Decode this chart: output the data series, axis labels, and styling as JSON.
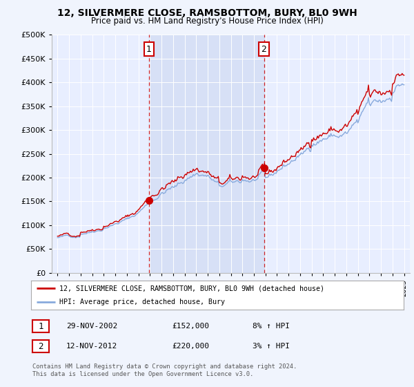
{
  "title": "12, SILVERMERE CLOSE, RAMSBOTTOM, BURY, BL0 9WH",
  "subtitle": "Price paid vs. HM Land Registry's House Price Index (HPI)",
  "ylim": [
    0,
    500000
  ],
  "yticks": [
    0,
    50000,
    100000,
    150000,
    200000,
    250000,
    300000,
    350000,
    400000,
    450000,
    500000
  ],
  "ytick_labels": [
    "£0",
    "£50K",
    "£100K",
    "£150K",
    "£200K",
    "£250K",
    "£300K",
    "£350K",
    "£400K",
    "£450K",
    "£500K"
  ],
  "fig_bg_color": "#f0f4fd",
  "plot_bg_color": "#e8eeff",
  "shade_color": "#ccd8f0",
  "grid_color": "#ffffff",
  "red_line_color": "#cc0000",
  "blue_line_color": "#88aadd",
  "purchase1_x": 2002.91,
  "purchase1_y": 152000,
  "purchase1_label": "1",
  "purchase2_x": 2012.87,
  "purchase2_y": 220000,
  "purchase2_label": "2",
  "vline_color": "#cc0000",
  "legend_label_red": "12, SILVERMERE CLOSE, RAMSBOTTOM, BURY, BL0 9WH (detached house)",
  "legend_label_blue": "HPI: Average price, detached house, Bury",
  "table_row1": [
    "1",
    "29-NOV-2002",
    "£152,000",
    "8% ↑ HPI"
  ],
  "table_row2": [
    "2",
    "12-NOV-2012",
    "£220,000",
    "3% ↑ HPI"
  ],
  "footnote": "Contains HM Land Registry data © Crown copyright and database right 2024.\nThis data is licensed under the Open Government Licence v3.0.",
  "xmin": 1994.5,
  "xmax": 2025.5
}
